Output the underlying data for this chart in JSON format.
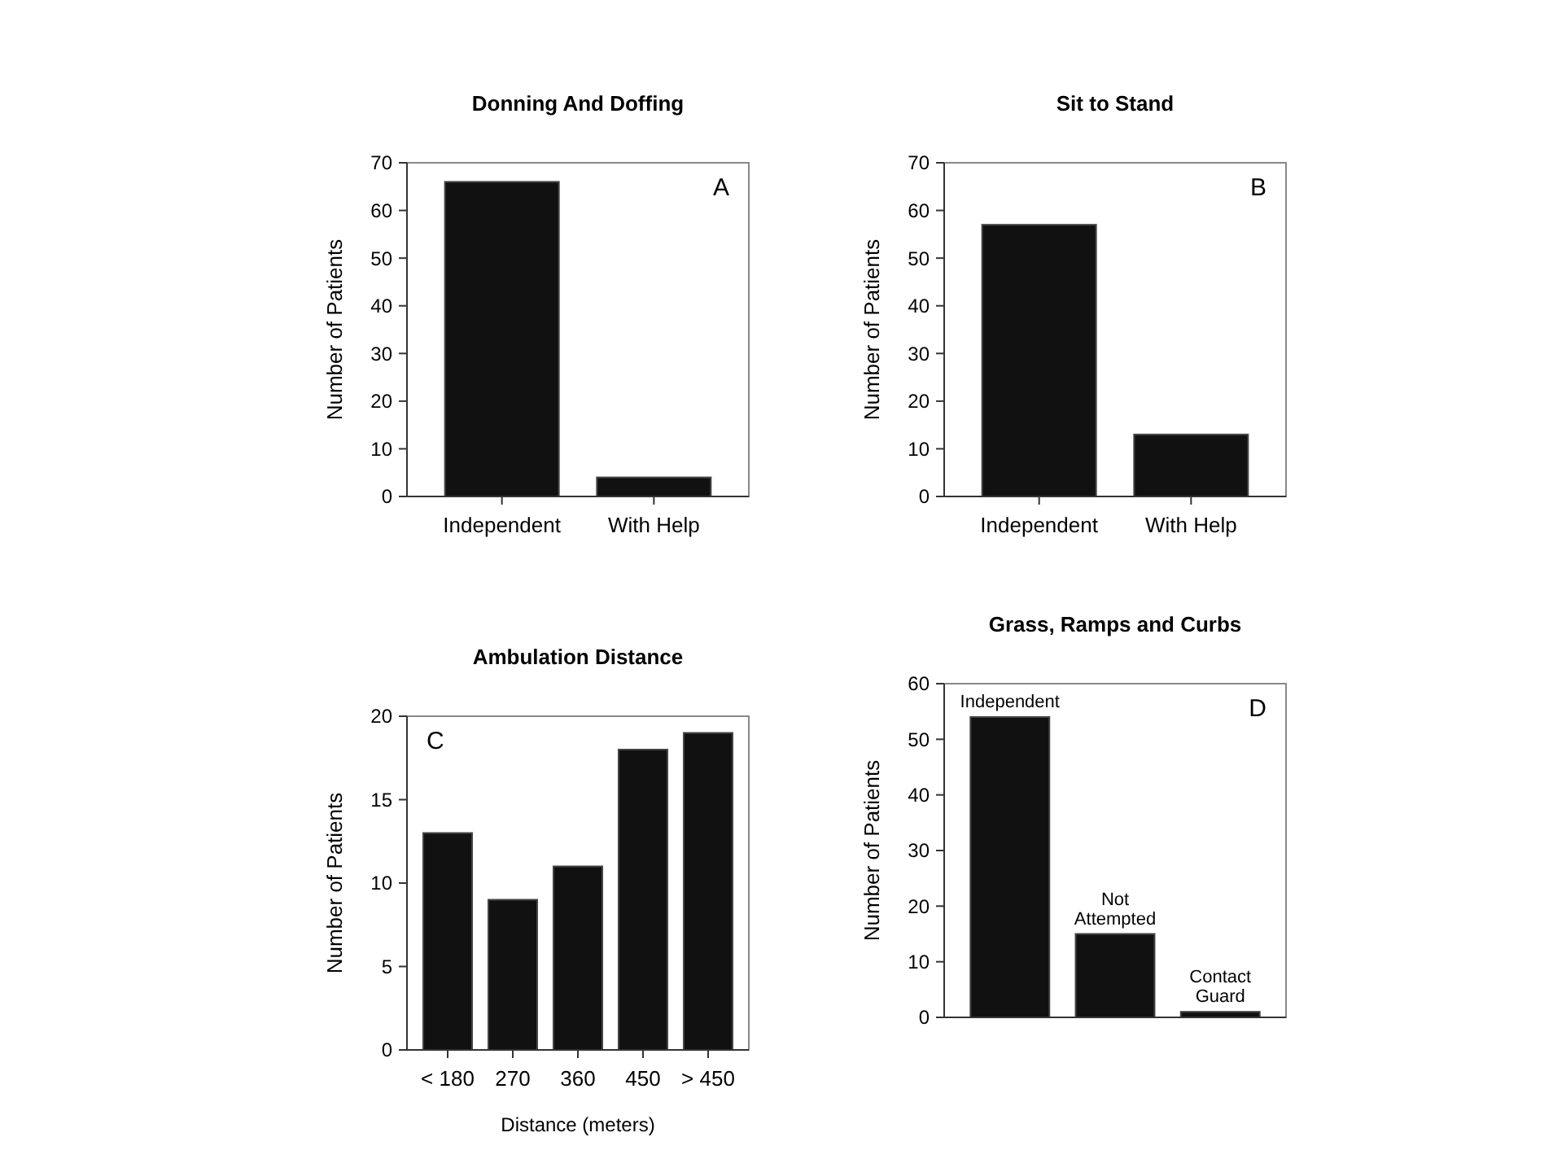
{
  "chart_data": [
    {
      "type": "bar",
      "title": "Donning And Doffing",
      "ylabel": "Number of Patients",
      "categories": [
        "Independent",
        "With Help"
      ],
      "values": [
        66,
        4
      ],
      "color": "#111111",
      "ylim": [
        0,
        70
      ],
      "yticks": [
        0,
        10,
        20,
        30,
        40,
        50,
        60,
        70
      ],
      "annotations": [
        "A"
      ]
    },
    {
      "type": "bar",
      "title": "Sit to Stand",
      "ylabel": "Number of Patients",
      "categories": [
        "Independent",
        "With Help"
      ],
      "values": [
        57,
        13
      ],
      "color": "#111111",
      "ylim": [
        0,
        70
      ],
      "yticks": [
        0,
        10,
        20,
        30,
        40,
        50,
        60,
        70
      ],
      "annotations": [
        "B"
      ]
    },
    {
      "type": "bar",
      "title": "Ambulation Distance",
      "xlabel": "Distance (meters)",
      "ylabel": "Number of Patients",
      "categories": [
        "< 180",
        "270",
        "360",
        "450",
        "> 450"
      ],
      "values": [
        13,
        9,
        11,
        18,
        19
      ],
      "color": "#111111",
      "ylim": [
        0,
        20
      ],
      "yticks": [
        0,
        5,
        10,
        15,
        20
      ],
      "annotations": [
        "C"
      ]
    },
    {
      "type": "bar",
      "title": "Grass, Ramps and Curbs",
      "ylabel": "Number of Patients",
      "categories": [
        "Independent",
        "Not Attempted",
        "Contact Guard"
      ],
      "values": [
        54,
        15,
        1
      ],
      "color": "#111111",
      "ylim": [
        0,
        60
      ],
      "yticks": [
        0,
        10,
        20,
        30,
        40,
        50,
        60
      ],
      "tick_labels": "y",
      "annotations": [
        "D"
      ]
    }
  ]
}
